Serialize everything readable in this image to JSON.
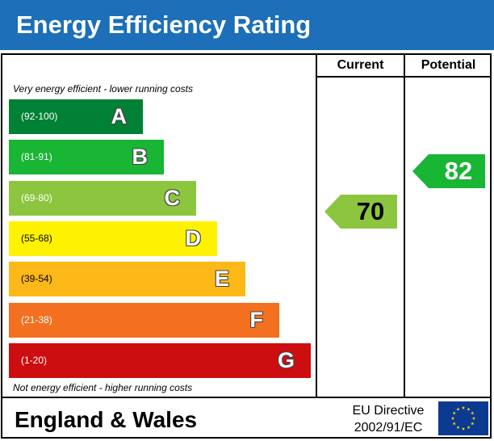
{
  "title": "Energy Efficiency Rating",
  "columns": {
    "current": "Current",
    "potential": "Potential"
  },
  "captions": {
    "top": "Very energy efficient - lower running costs",
    "bottom": "Not energy efficient - higher running costs"
  },
  "bands": [
    {
      "range": "(92-100)",
      "letter": "A",
      "color": "#008135"
    },
    {
      "range": "(81-91)",
      "letter": "B",
      "color": "#19b534"
    },
    {
      "range": "(69-80)",
      "letter": "C",
      "color": "#8cc63e"
    },
    {
      "range": "(55-68)",
      "letter": "D",
      "color": "#fff200"
    },
    {
      "range": "(39-54)",
      "letter": "E",
      "color": "#fbb816"
    },
    {
      "range": "(21-38)",
      "letter": "F",
      "color": "#f37021"
    },
    {
      "range": "(1-20)",
      "letter": "G",
      "color": "#cc0e11"
    }
  ],
  "ratings": {
    "current": {
      "value": "70",
      "band": "C",
      "color": "#8cc63e"
    },
    "potential": {
      "value": "82",
      "band": "B",
      "color": "#19b534"
    }
  },
  "footer": {
    "region": "England & Wales",
    "directive_line1": "EU Directive",
    "directive_line2": "2002/91/EC"
  },
  "flag_icon": "eu-flag-icon"
}
